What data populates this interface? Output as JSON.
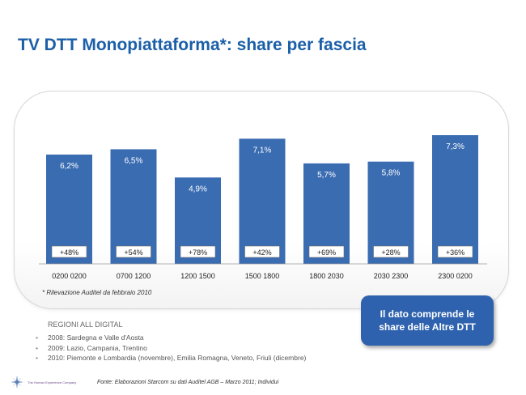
{
  "title": "TV DTT Monopiattaforma*: share per fascia",
  "chart_data": {
    "type": "bar",
    "categories": [
      "0200 0200",
      "0700 1200",
      "1200 1500",
      "1500 1800",
      "1800 2030",
      "2030 2300",
      "2300 0200"
    ],
    "values": [
      6.2,
      6.5,
      4.9,
      7.1,
      5.7,
      5.8,
      7.3
    ],
    "value_labels": [
      "6,2%",
      "6,5%",
      "4,9%",
      "7,1%",
      "5,7%",
      "5,8%",
      "7,3%"
    ],
    "growth_labels": [
      "+48%",
      "+54%",
      "+78%",
      "+42%",
      "+69%",
      "+28%",
      "+36%"
    ],
    "ylim": [
      0,
      7.3
    ],
    "bar_color": "#3a6cb2",
    "grid": false,
    "legend": "none"
  },
  "footnote": "*  Rilevazione Auditel da febbraio 2010",
  "callout": {
    "line1": "Il dato comprende le",
    "line2": "share delle Altre DTT"
  },
  "regions": {
    "title": "REGIONI ALL DIGITAL",
    "items": [
      "2008: Sardegna e Valle d'Aosta",
      "2009: Lazio, Campania, Trentino",
      "2010: Piemonte e Lombardia (novembre), Emilia Romagna, Veneto, Friuli (dicembre)"
    ]
  },
  "logo_text": "The Human Experience Company",
  "source": "Fonte: Elaborazioni Starcom su dati Auditel AGB – Marzo 2011; Individui"
}
